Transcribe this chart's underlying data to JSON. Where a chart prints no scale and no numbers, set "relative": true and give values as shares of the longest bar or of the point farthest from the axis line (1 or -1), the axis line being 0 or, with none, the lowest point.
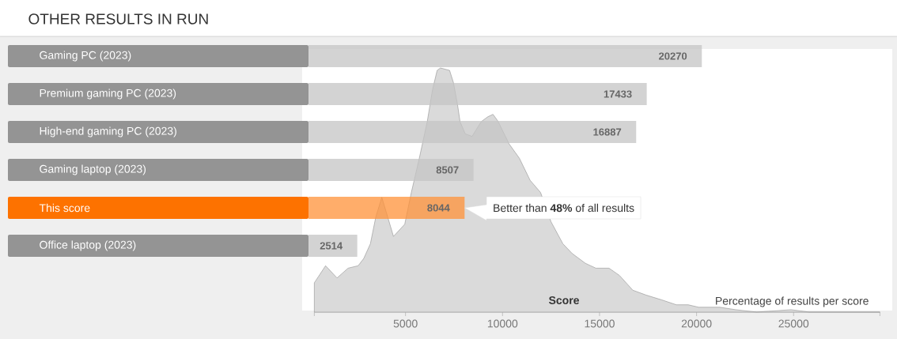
{
  "chart_data": [
    {
      "type": "bar",
      "orientation": "horizontal",
      "title": "OTHER RESULTS IN RUN",
      "categories": [
        "Gaming PC (2023)",
        "Premium gaming PC (2023)",
        "High-end gaming PC (2023)",
        "Gaming laptop (2023)",
        "This score",
        "Office laptop (2023)"
      ],
      "values": [
        20270,
        17433,
        16887,
        8507,
        8044,
        2514
      ],
      "colors": [
        "#d3d3d3",
        "#d3d3d3",
        "#d3d3d3",
        "#d3d3d3",
        "#ffad6a",
        "#d3d3d3"
      ],
      "data_labels": true,
      "tick_labels": "y",
      "annotations": [
        {
          "text": "Better than **48%** of all results",
          "x": 8044,
          "y": "This score"
        }
      ]
    },
    {
      "type": "area",
      "relative": true,
      "x": [
        300,
        880,
        1470,
        2040,
        2560,
        2850,
        3190,
        3470,
        3780,
        4080,
        4380,
        4960,
        5300,
        5710,
        6120,
        6390,
        6630,
        6800,
        7270,
        7470,
        7680,
        7810,
        8080,
        8430,
        8900,
        9240,
        9510,
        9780,
        10330,
        10870,
        11420,
        11960,
        12500,
        13110,
        13590,
        14270,
        14810,
        15490,
        16030,
        16710,
        17390,
        18210,
        18960,
        19570,
        20110,
        21200,
        22010,
        23100,
        24870,
        25810,
        29450
      ],
      "values": [
        0.12,
        0.19,
        0.14,
        0.18,
        0.19,
        0.22,
        0.28,
        0.39,
        0.47,
        0.39,
        0.31,
        0.36,
        0.49,
        0.63,
        0.78,
        0.91,
        0.99,
        1,
        0.99,
        0.94,
        0.85,
        0.78,
        0.73,
        0.72,
        0.78,
        0.8,
        0.81,
        0.78,
        0.69,
        0.63,
        0.54,
        0.49,
        0.37,
        0.28,
        0.24,
        0.2,
        0.18,
        0.18,
        0.15,
        0.09,
        0.07,
        0.05,
        0.03,
        0.03,
        0.02,
        0.02,
        0.01,
        0.0,
        0.01,
        0.0,
        0.0
      ],
      "color": "#dadada",
      "xlim": [
        300,
        29450
      ],
      "xticks": [
        {
          "value": 300,
          "label": null
        },
        5000,
        10000,
        15000,
        20000,
        25000,
        {
          "value": 29450,
          "label": null
        }
      ],
      "xlabel": "Score",
      "ylabel": "Percentage of results per score"
    }
  ]
}
